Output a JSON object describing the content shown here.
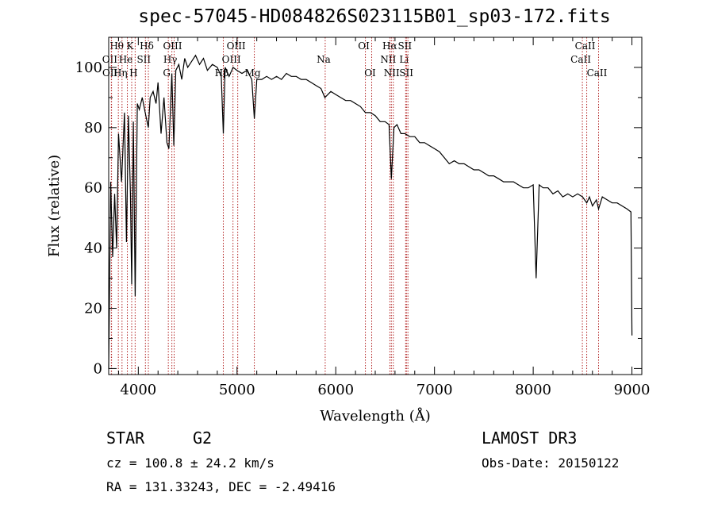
{
  "chart_data": {
    "type": "line",
    "title": "spec-57045-HD084826S023115B01_sp03-172.fits",
    "xlabel": "Wavelength (Å)",
    "ylabel": "Flux (relative)",
    "xlim": [
      3700,
      9100
    ],
    "ylim": [
      -2,
      110
    ],
    "xticks": [
      4000,
      5000,
      6000,
      7000,
      8000,
      9000
    ],
    "yticks": [
      0,
      20,
      40,
      60,
      80,
      100
    ],
    "grid": false,
    "series": [
      {
        "name": "spectrum",
        "x": [
          3700,
          3720,
          3740,
          3760,
          3780,
          3800,
          3830,
          3860,
          3880,
          3900,
          3920,
          3933,
          3950,
          3968,
          3990,
          4010,
          4040,
          4070,
          4102,
          4120,
          4150,
          4180,
          4200,
          4230,
          4260,
          4290,
          4310,
          4340,
          4360,
          4380,
          4410,
          4440,
          4470,
          4500,
          4540,
          4580,
          4620,
          4660,
          4700,
          4750,
          4800,
          4840,
          4861,
          4880,
          4920,
          4960,
          5000,
          5050,
          5100,
          5150,
          5175,
          5200,
          5250,
          5300,
          5350,
          5400,
          5450,
          5500,
          5550,
          5600,
          5650,
          5700,
          5750,
          5800,
          5850,
          5890,
          5950,
          6000,
          6050,
          6100,
          6150,
          6200,
          6250,
          6300,
          6350,
          6400,
          6450,
          6500,
          6540,
          6563,
          6590,
          6620,
          6660,
          6700,
          6750,
          6800,
          6850,
          6900,
          6950,
          7000,
          7050,
          7100,
          7150,
          7200,
          7250,
          7300,
          7350,
          7400,
          7450,
          7500,
          7550,
          7600,
          7650,
          7700,
          7750,
          7800,
          7850,
          7900,
          7950,
          8000,
          8030,
          8060,
          8100,
          8150,
          8200,
          8250,
          8300,
          8350,
          8400,
          8450,
          8500,
          8542,
          8570,
          8600,
          8640,
          8662,
          8700,
          8750,
          8800,
          8850,
          8900,
          8950,
          8990,
          9000
        ],
        "y": [
          0,
          62,
          37,
          58,
          40,
          78,
          62,
          85,
          42,
          84,
          58,
          28,
          82,
          24,
          88,
          86,
          90,
          85,
          80,
          90,
          92,
          88,
          95,
          78,
          90,
          75,
          73,
          98,
          74,
          99,
          101,
          96,
          103,
          100,
          102,
          104,
          101,
          103,
          99,
          101,
          100,
          97,
          78,
          100,
          97,
          100,
          99,
          98,
          99,
          96,
          83,
          96,
          96,
          97,
          96,
          97,
          96,
          98,
          97,
          97,
          96,
          96,
          95,
          94,
          93,
          90,
          92,
          91,
          90,
          89,
          89,
          88,
          87,
          85,
          85,
          84,
          82,
          82,
          81,
          63,
          80,
          81,
          78,
          78,
          77,
          77,
          75,
          75,
          74,
          73,
          72,
          70,
          68,
          69,
          68,
          68,
          67,
          66,
          66,
          65,
          64,
          64,
          63,
          62,
          62,
          62,
          61,
          60,
          60,
          61,
          30,
          61,
          60,
          60,
          58,
          59,
          57,
          58,
          57,
          58,
          57,
          55,
          57,
          54,
          56,
          53,
          57,
          56,
          55,
          55,
          54,
          53,
          52,
          11
        ]
      }
    ],
    "line_markers": [
      {
        "label": "Hθ",
        "x": 3798,
        "row": 0
      },
      {
        "label": "OII",
        "x": 3727,
        "row": 1
      },
      {
        "label": "OII",
        "x": 3729,
        "row": 2
      },
      {
        "label": "Hη",
        "x": 3835,
        "row": 2
      },
      {
        "label": "He",
        "x": 3889,
        "row": 1
      },
      {
        "label": "K",
        "x": 3933,
        "row": 0
      },
      {
        "label": "H",
        "x": 3968,
        "row": 2
      },
      {
        "label": "SII",
        "x": 4072,
        "row": 1
      },
      {
        "label": "Hδ",
        "x": 4102,
        "row": 0
      },
      {
        "label": "G",
        "x": 4304,
        "row": 2
      },
      {
        "label": "Hγ",
        "x": 4340,
        "row": 1
      },
      {
        "label": "OIII",
        "x": 4363,
        "row": 0
      },
      {
        "label": "Hβ",
        "x": 4861,
        "row": 2
      },
      {
        "label": "OIII",
        "x": 4959,
        "row": 1
      },
      {
        "label": "OIII",
        "x": 5007,
        "row": 0
      },
      {
        "label": "Mg",
        "x": 5175,
        "row": 2
      },
      {
        "label": "Na",
        "x": 5893,
        "row": 1
      },
      {
        "label": "OI",
        "x": 6300,
        "row": 0
      },
      {
        "label": "OI",
        "x": 6364,
        "row": 2
      },
      {
        "label": "NII",
        "x": 6548,
        "row": 1
      },
      {
        "label": "Hα",
        "x": 6563,
        "row": 0
      },
      {
        "label": "NII",
        "x": 6583,
        "row": 2
      },
      {
        "label": "Li",
        "x": 6708,
        "row": 1
      },
      {
        "label": "SII",
        "x": 6716,
        "row": 0
      },
      {
        "label": "SII",
        "x": 6731,
        "row": 2
      },
      {
        "label": "CaII",
        "x": 8498,
        "row": 1
      },
      {
        "label": "CaII",
        "x": 8542,
        "row": 0
      },
      {
        "label": "CaII",
        "x": 8662,
        "row": 2
      }
    ]
  },
  "info": {
    "object_class": "STAR",
    "subclass": "G2",
    "survey": "LAMOST DR3",
    "cz": "cz = 100.8 ± 24.2 km/s",
    "obs_date": "Obs-Date: 20150122",
    "coords": "RA = 131.33243, DEC =  -2.49416"
  }
}
